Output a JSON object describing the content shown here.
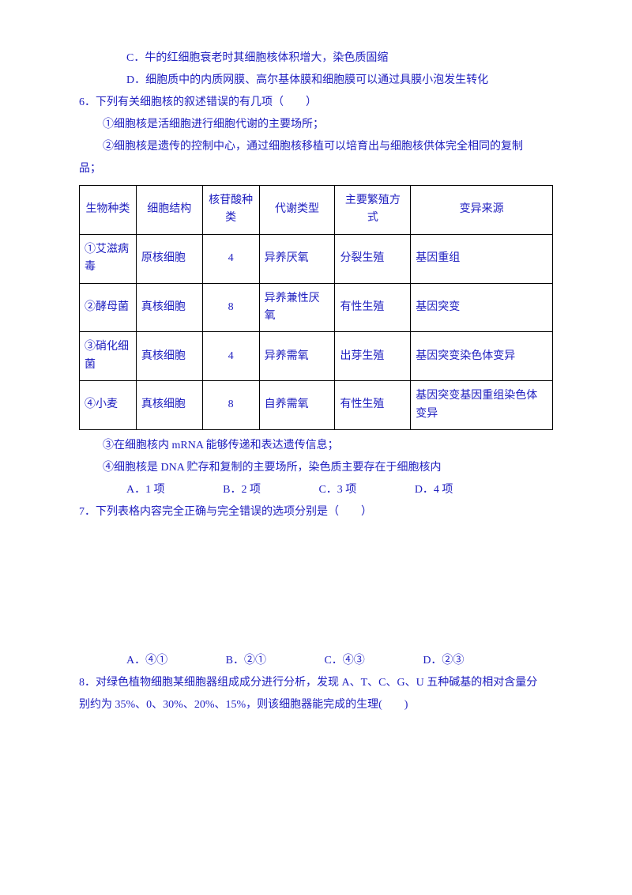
{
  "colors": {
    "text": "#2020c0",
    "border": "#000000",
    "bg": "#ffffff"
  },
  "font": {
    "family": "SimSun",
    "size_pt": 10.5
  },
  "lines": {
    "c": "C．牛的红细胞衰老时其细胞核体积增大，染色质固缩",
    "d": "D．细胞质中的内质网膜、高尔基体膜和细胞膜可以通过具膜小泡发生转化",
    "q6": "6．下列有关细胞核的叙述错误的有几项（　　）",
    "s1": "①细胞核是活细胞进行细胞代谢的主要场所；",
    "s2a": "②细胞核是遗传的控制中心，通过细胞核移植可以培育出与细胞核供体完全相同的复制",
    "s2b": "品；",
    "s3": "③在细胞核内 mRNA 能够传递和表达遗传信息；",
    "s4": "④细胞核是 DNA 贮存和复制的主要场所，染色质主要存在于细胞核内",
    "q6A": "A．1 项",
    "q6B": "B．2 项",
    "q6C": "C．3 项",
    "q6D": "D．4 项",
    "q7": "7．下列表格内容完全正确与完全错误的选项分别是（　　）",
    "q7A": "A．④①",
    "q7B": "B．②①",
    "q7C": "C．④③",
    "q7D": "D．②③",
    "q8a": "8．对绿色植物细胞某细胞器组成成分进行分析，发现 A、T、C、G、U 五种碱基的相对含量分",
    "q8b": "别约为 35%、0、30%、20%、15%，则该细胞器能完成的生理(　　)"
  },
  "table": {
    "columns": [
      "生物种类",
      "细胞结构",
      "核苷酸种类",
      "代谢类型",
      "主要繁殖方式",
      "变异来源"
    ],
    "rows": [
      {
        "species": "①艾滋病毒",
        "struct": "原核细胞",
        "nuc": "4",
        "meta": "异养厌氧",
        "repro": "分裂生殖",
        "var": "基因重组"
      },
      {
        "species": "②酵母菌",
        "struct": "真核细胞",
        "nuc": "8",
        "meta": "异养兼性厌氧",
        "repro": "有性生殖",
        "var": "基因突变"
      },
      {
        "species": "③硝化细菌",
        "struct": "真核细胞",
        "nuc": "4",
        "meta": "异养需氧",
        "repro": "出芽生殖",
        "var": "基因突变染色体变异"
      },
      {
        "species": "④小麦",
        "struct": "真核细胞",
        "nuc": "8",
        "meta": "自养需氧",
        "repro": "有性生殖",
        "var": "基因突变基因重组染色体变异"
      }
    ]
  }
}
